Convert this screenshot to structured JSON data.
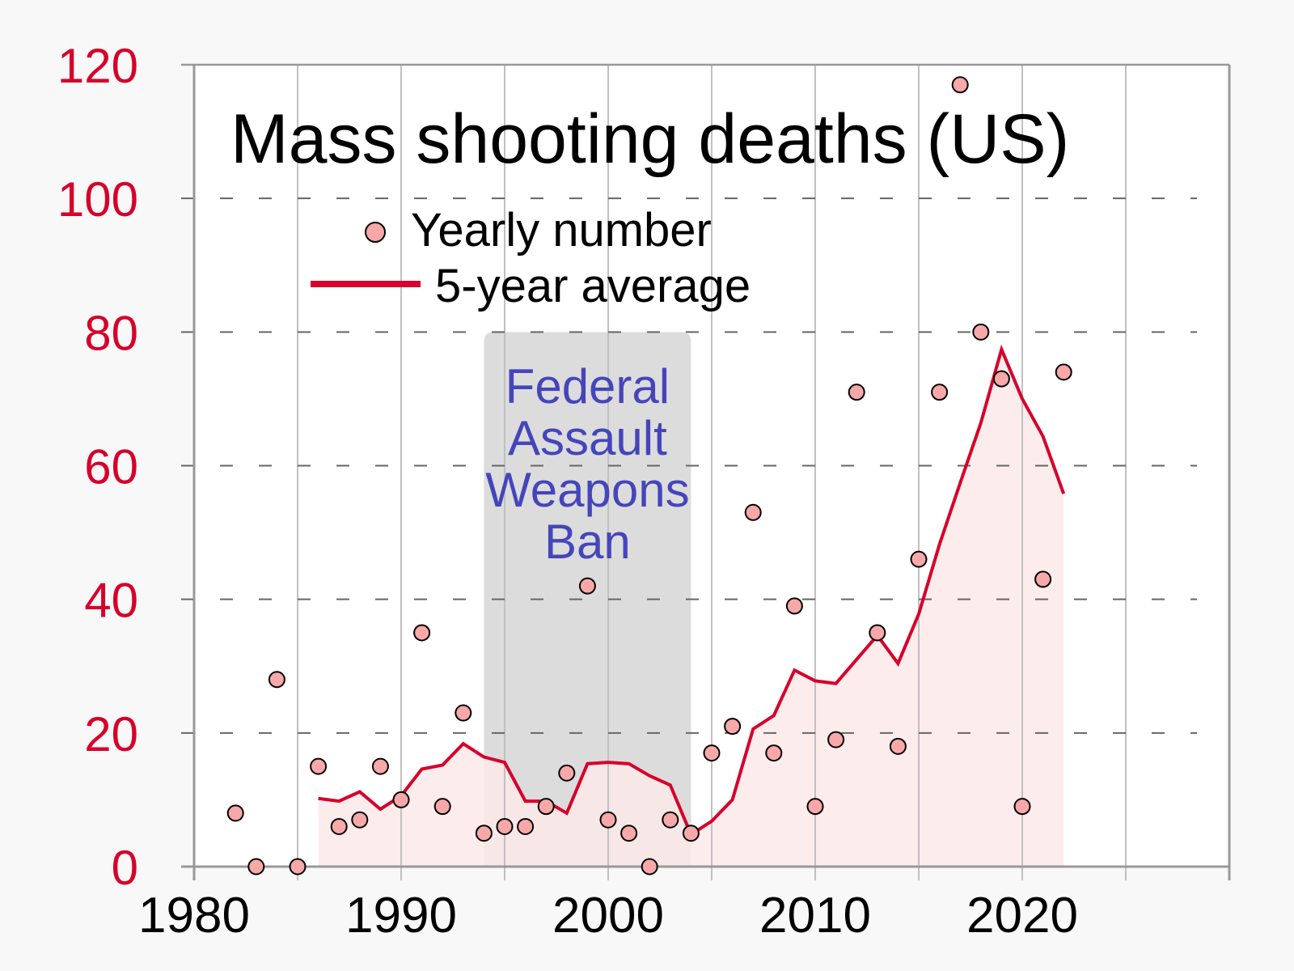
{
  "chart_data": {
    "type": "scatter",
    "title": "Mass shooting deaths (US)",
    "xlabel": "",
    "ylabel": "",
    "xlim": [
      1980,
      2030
    ],
    "ylim": [
      0,
      120
    ],
    "x_ticks": [
      1980,
      1990,
      2000,
      2010,
      2020
    ],
    "x_tick_labels": [
      "1980",
      "1990",
      "2000",
      "2010",
      "2020"
    ],
    "y_ticks": [
      0,
      20,
      40,
      60,
      80,
      100,
      120
    ],
    "y_tick_labels": [
      "0",
      "20",
      "40",
      "60",
      "80",
      "100",
      "120"
    ],
    "grid": {
      "vertical_every_years": 5,
      "horizontal": "dashed"
    },
    "legend": {
      "placement": "top-left",
      "entries": [
        {
          "label": "Yearly number",
          "marker": "circle"
        },
        {
          "label": "5-year average",
          "marker": "line"
        }
      ]
    },
    "series": [
      {
        "name": "Yearly number",
        "type": "scatter",
        "x": [
          1982,
          1983,
          1984,
          1985,
          1986,
          1987,
          1988,
          1989,
          1990,
          1991,
          1992,
          1993,
          1994,
          1995,
          1996,
          1997,
          1998,
          1999,
          2000,
          2001,
          2002,
          2003,
          2004,
          2005,
          2006,
          2007,
          2008,
          2009,
          2010,
          2011,
          2012,
          2013,
          2014,
          2015,
          2016,
          2017,
          2018,
          2019,
          2020,
          2021,
          2022
        ],
        "values": [
          8,
          0,
          28,
          0,
          15,
          6,
          7,
          15,
          10,
          35,
          9,
          23,
          5,
          6,
          6,
          9,
          14,
          42,
          7,
          5,
          0,
          7,
          5,
          17,
          21,
          53,
          17,
          39,
          9,
          19,
          71,
          35,
          18,
          46,
          71,
          117,
          80,
          73,
          9,
          43,
          74
        ]
      },
      {
        "name": "5-year average",
        "type": "area-line",
        "x": [
          1986,
          1987,
          1988,
          1989,
          1990,
          1991,
          1992,
          1993,
          1994,
          1995,
          1996,
          1997,
          1998,
          1999,
          2000,
          2001,
          2002,
          2003,
          2004,
          2005,
          2006,
          2007,
          2008,
          2009,
          2010,
          2011,
          2012,
          2013,
          2014,
          2015,
          2016,
          2017,
          2018,
          2019,
          2020,
          2021,
          2022
        ],
        "values": [
          10.2,
          9.8,
          11.2,
          8.6,
          10.6,
          14.6,
          15.2,
          18.4,
          16.4,
          15.6,
          9.8,
          9.8,
          8.0,
          15.4,
          15.6,
          15.4,
          13.6,
          12.2,
          4.8,
          6.8,
          10.0,
          20.6,
          22.6,
          29.4,
          27.8,
          27.4,
          31.0,
          34.6,
          30.4,
          37.8,
          48.2,
          57.4,
          66.4,
          77.4,
          70.0,
          64.4,
          55.8
        ]
      }
    ],
    "annotations": [
      {
        "label_lines": [
          "Federal",
          "Assault",
          "Weapons",
          "Ban"
        ],
        "x_range": [
          1994,
          2004
        ],
        "y_top": 80
      }
    ],
    "colors": {
      "y_tick_labels": "#d6002a",
      "line": "#d6002a",
      "area_fill": "#fde9e9",
      "marker_fill": "#f8a8a8",
      "marker_stroke": "#000000",
      "annotation_box": "#dcdcdc",
      "annotation_text": "#4545bb"
    }
  }
}
